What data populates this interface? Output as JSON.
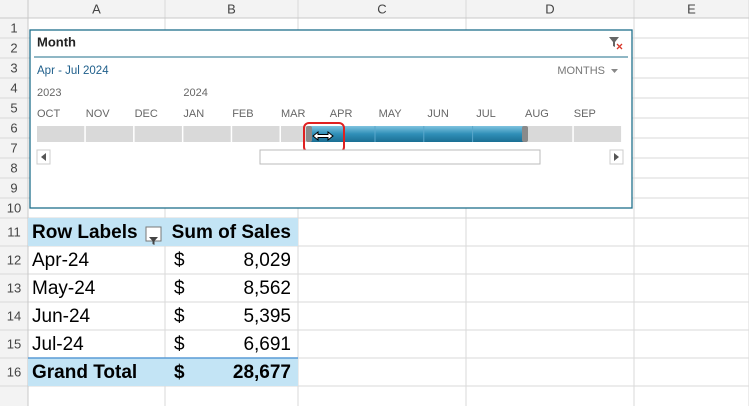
{
  "columns": [
    "A",
    "B",
    "C",
    "D",
    "E"
  ],
  "rows": [
    1,
    2,
    3,
    4,
    5,
    6,
    7,
    8,
    9,
    10,
    11,
    12,
    13,
    14,
    15,
    16
  ],
  "timeline": {
    "title": "Month",
    "range": "Apr - Jul 2024",
    "level": "MONTHS",
    "years": [
      "2023",
      "2024"
    ],
    "months": [
      "OCT",
      "NOV",
      "DEC",
      "JAN",
      "FEB",
      "MAR",
      "APR",
      "MAY",
      "JUN",
      "JUL",
      "AUG",
      "SEP"
    ]
  },
  "pivot": {
    "headers": [
      "Row Labels",
      "Sum of Sales"
    ],
    "rows": [
      [
        "Apr-24",
        "$",
        "8,029"
      ],
      [
        "May-24",
        "$",
        "8,562"
      ],
      [
        "Jun-24",
        "$",
        "5,395"
      ],
      [
        "Jul-24",
        "$",
        "6,691"
      ]
    ],
    "total": [
      "Grand Total",
      "$",
      "28,677"
    ]
  }
}
